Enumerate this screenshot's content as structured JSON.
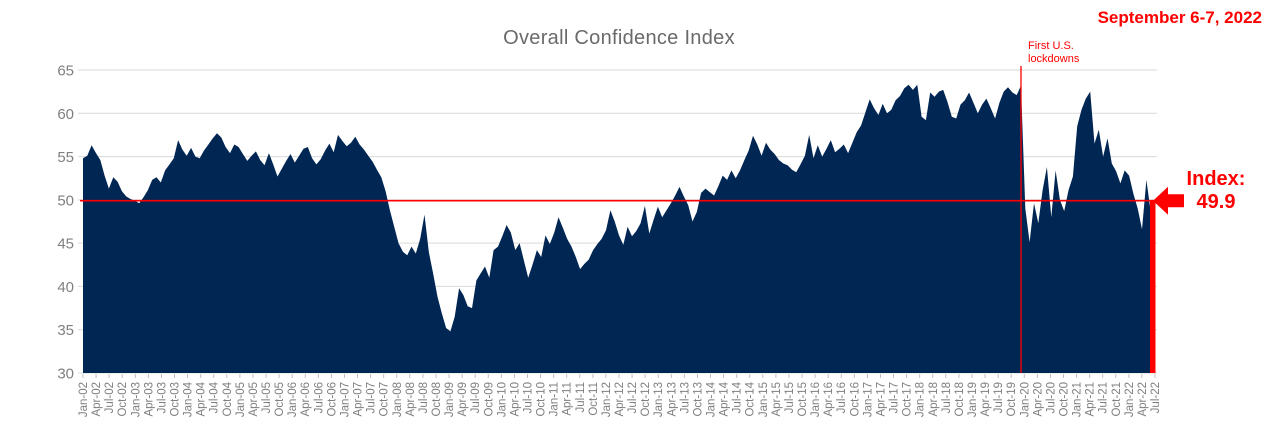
{
  "header": {
    "date_label": "September 6-7, 2022"
  },
  "chart_data": {
    "type": "area",
    "title": "Overall Confidence Index",
    "xlabel": "",
    "ylabel": "",
    "ylim": [
      30,
      65
    ],
    "y_ticks": [
      65,
      60,
      55,
      50,
      45,
      40,
      35,
      30
    ],
    "grid": "horizontal",
    "x_tick_labels": [
      "Jan-02",
      "Apr-02",
      "Jul-02",
      "Oct-02",
      "Jan-03",
      "Apr-03",
      "Jul-03",
      "Oct-03",
      "Jan-04",
      "Apr-04",
      "Jul-04",
      "Oct-04",
      "Jan-05",
      "Apr-05",
      "Jul-05",
      "Oct-05",
      "Jan-06",
      "Apr-06",
      "Jul-06",
      "Oct-06",
      "Jan-07",
      "Apr-07",
      "Jul-07",
      "Oct-07",
      "Jan-08",
      "Apr-08",
      "Jul-08",
      "Oct-08",
      "Jan-09",
      "Apr-09",
      "Jul-09",
      "Oct-09",
      "Jan-10",
      "Apr-10",
      "Jul-10",
      "Oct-10",
      "Jan-11",
      "Apr-11",
      "Jul-11",
      "Oct-11",
      "Jan-12",
      "Apr-12",
      "Jul-12",
      "Oct-12",
      "Jan-13",
      "Apr-13",
      "Jul-13",
      "Oct-13",
      "Jan-14",
      "Apr-14",
      "Jul-14",
      "Oct-14",
      "Jan-15",
      "Apr-15",
      "Jul-15",
      "Oct-15",
      "Jan-16",
      "Apr-16",
      "Jul-16",
      "Oct-16",
      "Jan-17",
      "Apr-17",
      "Jul-17",
      "Oct-17",
      "Jan-18",
      "Apr-18",
      "Jul-18",
      "Oct-18",
      "Jan-19",
      "Apr-19",
      "Jul-19",
      "Oct-19",
      "Jan-20",
      "Apr-20",
      "Jul-20",
      "Oct-20",
      "Jan-21",
      "Apr-21",
      "Jul-21",
      "Oct-21",
      "Jan-22",
      "Apr-22",
      "Jul-22"
    ],
    "series": [
      {
        "name": "Overall Confidence Index",
        "start_month": "Jan-2002",
        "frequency": "monthly",
        "values": [
          54.8,
          55.1,
          56.3,
          55.4,
          54.6,
          52.8,
          51.3,
          52.6,
          52.1,
          51.0,
          50.4,
          50.1,
          49.9,
          49.6,
          50.3,
          51.1,
          52.3,
          52.6,
          52.0,
          53.4,
          54.1,
          54.8,
          56.9,
          55.8,
          55.1,
          56.0,
          55.0,
          54.8,
          55.7,
          56.4,
          57.1,
          57.7,
          57.2,
          56.1,
          55.4,
          56.4,
          56.1,
          55.3,
          54.5,
          55.1,
          55.6,
          54.6,
          54.0,
          55.4,
          54.1,
          52.7,
          53.6,
          54.5,
          55.3,
          54.3,
          55.1,
          55.9,
          56.1,
          54.8,
          54.1,
          54.7,
          55.7,
          56.5,
          55.5,
          57.5,
          56.8,
          56.2,
          56.6,
          57.3,
          56.4,
          55.8,
          55.1,
          54.4,
          53.5,
          52.6,
          51.0,
          48.8,
          46.9,
          45.0,
          44.0,
          43.6,
          44.6,
          43.8,
          45.5,
          48.3,
          44.0,
          41.5,
          38.8,
          36.9,
          35.2,
          34.8,
          36.5,
          39.8,
          39.0,
          37.7,
          37.5,
          40.7,
          41.5,
          42.3,
          41.0,
          44.2,
          44.6,
          45.8,
          47.1,
          46.2,
          44.2,
          45.0,
          43.0,
          41.0,
          42.5,
          44.2,
          43.4,
          45.9,
          44.9,
          46.2,
          48.0,
          46.8,
          45.5,
          44.6,
          43.4,
          42.0,
          42.6,
          43.1,
          44.2,
          44.9,
          45.5,
          46.5,
          48.8,
          47.5,
          45.9,
          44.8,
          46.9,
          45.8,
          46.4,
          47.3,
          49.3,
          46.1,
          47.7,
          49.2,
          48.0,
          48.8,
          49.6,
          50.5,
          51.5,
          50.4,
          49.4,
          47.5,
          48.6,
          50.8,
          51.3,
          50.9,
          50.5,
          51.6,
          52.8,
          52.3,
          53.4,
          52.5,
          53.4,
          54.6,
          55.7,
          57.4,
          56.4,
          55.1,
          56.6,
          55.8,
          55.3,
          54.6,
          54.2,
          54.0,
          53.5,
          53.2,
          54.1,
          55.1,
          57.5,
          54.8,
          56.3,
          55.0,
          55.9,
          56.9,
          55.5,
          55.9,
          56.4,
          55.4,
          56.6,
          57.8,
          58.6,
          60.1,
          61.6,
          60.6,
          59.8,
          61.1,
          60.0,
          60.4,
          61.5,
          62.0,
          62.9,
          63.3,
          62.7,
          63.3,
          59.6,
          59.2,
          62.4,
          61.9,
          62.5,
          62.7,
          61.3,
          59.6,
          59.4,
          61.0,
          61.5,
          62.4,
          61.2,
          60.0,
          61.0,
          61.7,
          60.6,
          59.4,
          61.2,
          62.5,
          63.0,
          62.4,
          62.1,
          63.2,
          49.0,
          45.1,
          49.6,
          47.3,
          51.1,
          53.8,
          48.0,
          53.4,
          50.0,
          48.7,
          51.1,
          52.7,
          58.5,
          60.4,
          61.7,
          62.5,
          56.5,
          58.1,
          55.0,
          57.1,
          54.2,
          53.3,
          51.9,
          53.4,
          52.8,
          50.7,
          49.0,
          46.6,
          52.3,
          48.6,
          49.9
        ]
      }
    ],
    "reference_line": {
      "value": 49.9
    },
    "event_line": {
      "label": "First U.S. lockdowns",
      "month_index": 217,
      "month": "Feb/Mar-20"
    },
    "annotation": {
      "label": "Index:",
      "value": "49.9"
    },
    "end_marker": {
      "from": 30,
      "to": 49.9
    },
    "colors": {
      "area": "#002654",
      "accent": "#FF0000",
      "title_text": "#6A6A6A",
      "axis_text": "#7F7F7F",
      "grid": "#D9D9D9",
      "tick": "#BFBFBF",
      "background": "#FFFFFF"
    },
    "legend": {
      "visible": false
    }
  }
}
